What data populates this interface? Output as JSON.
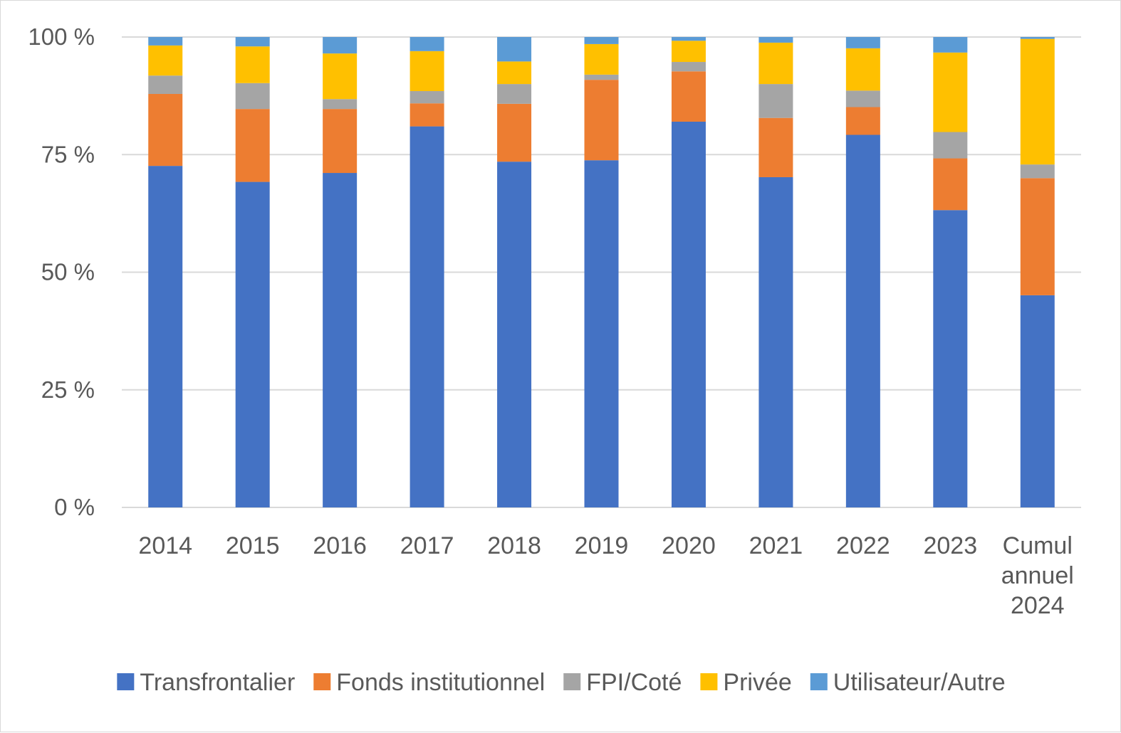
{
  "chart_data": {
    "type": "bar",
    "stacked": true,
    "categories": [
      [
        "2014"
      ],
      [
        "2015"
      ],
      [
        "2016"
      ],
      [
        "2017"
      ],
      [
        "2018"
      ],
      [
        "2019"
      ],
      [
        "2020"
      ],
      [
        "2021"
      ],
      [
        "2022"
      ],
      [
        "2023"
      ],
      [
        "Cumul",
        "annuel",
        "2024"
      ]
    ],
    "series": [
      {
        "name": "Transfrontalier",
        "color": "#4472C4",
        "values": [
          72.6,
          69.2,
          71.1,
          81.0,
          73.5,
          73.8,
          82.0,
          70.2,
          79.2,
          63.2,
          45.1
        ]
      },
      {
        "name": "Fonds institutionnel",
        "color": "#ED7D31",
        "values": [
          15.3,
          15.5,
          13.6,
          4.9,
          12.3,
          17.1,
          10.7,
          12.6,
          5.9,
          11.0,
          24.9
        ]
      },
      {
        "name": "FPI/Coté",
        "color": "#A5A5A5",
        "values": [
          3.9,
          5.5,
          2.1,
          2.6,
          4.2,
          1.1,
          2.0,
          7.2,
          3.5,
          5.6,
          2.9
        ]
      },
      {
        "name": "Privée",
        "color": "#FFC000",
        "values": [
          6.4,
          7.8,
          9.7,
          8.5,
          4.8,
          6.5,
          4.5,
          8.8,
          9.0,
          16.9,
          26.7
        ]
      },
      {
        "name": "Utilisateur/Autre",
        "color": "#5B9BD5",
        "values": [
          1.8,
          2.0,
          3.5,
          3.0,
          5.2,
          1.5,
          0.8,
          1.2,
          2.4,
          3.3,
          0.4
        ]
      }
    ],
    "yticks": [
      "0 %",
      "25 %",
      "50 %",
      "75 %",
      "100 %"
    ],
    "ylim": [
      0,
      100
    ],
    "grid": true,
    "legend": "bottom"
  }
}
